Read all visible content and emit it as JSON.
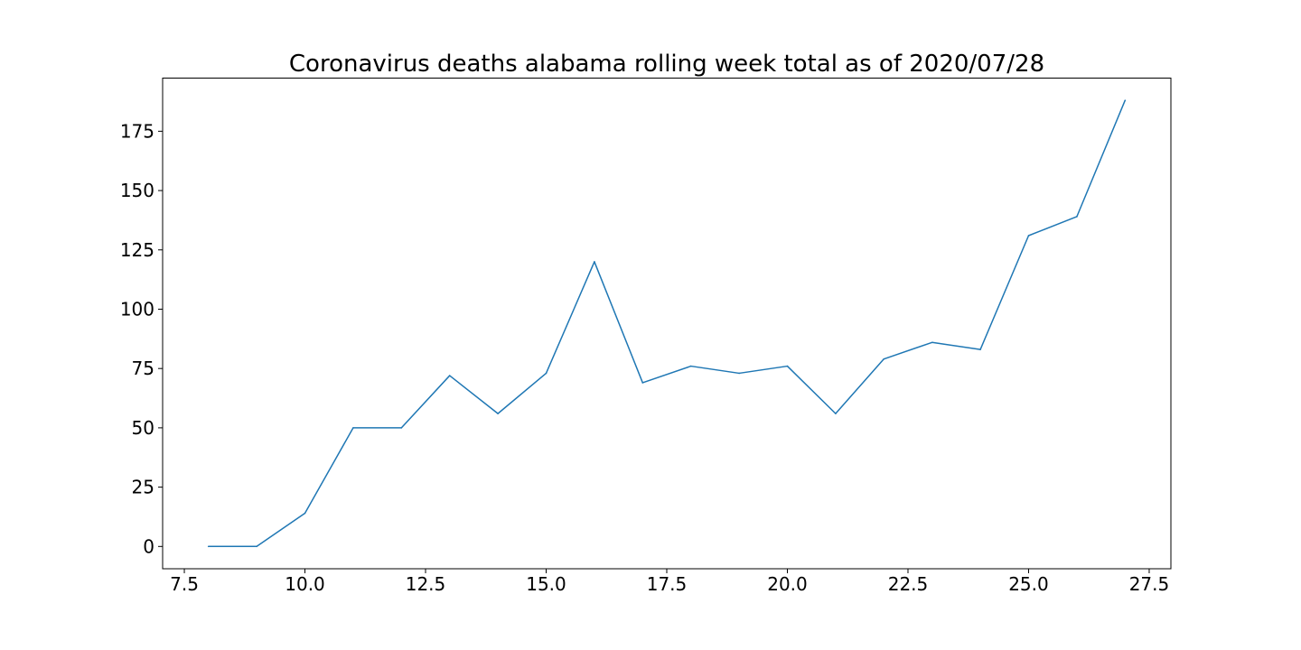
{
  "chart_data": {
    "type": "line",
    "title": "Coronavirus deaths alabama rolling week total as of 2020/07/28",
    "xlabel": "",
    "ylabel": "",
    "xlim": [
      7.05,
      27.95
    ],
    "ylim": [
      -9.4,
      197.4
    ],
    "xticks": [
      7.5,
      10.0,
      12.5,
      15.0,
      17.5,
      20.0,
      22.5,
      25.0,
      27.5
    ],
    "xtick_labels": [
      "7.5",
      "10.0",
      "12.5",
      "15.0",
      "17.5",
      "20.0",
      "22.5",
      "25.0",
      "27.5"
    ],
    "yticks": [
      0,
      25,
      50,
      75,
      100,
      125,
      150,
      175
    ],
    "ytick_labels": [
      "0",
      "25",
      "50",
      "75",
      "100",
      "125",
      "150",
      "175"
    ],
    "grid": false,
    "series": [
      {
        "color": "#1f77b4",
        "x": [
          8,
          9,
          10,
          11,
          12,
          13,
          14,
          15,
          16,
          17,
          18,
          19,
          20,
          21,
          22,
          23,
          24,
          25,
          26,
          27
        ],
        "values": [
          0,
          0,
          14,
          50,
          50,
          72,
          56,
          73,
          120,
          69,
          76,
          73,
          76,
          56,
          79,
          86,
          83,
          131,
          139,
          188
        ]
      }
    ]
  }
}
